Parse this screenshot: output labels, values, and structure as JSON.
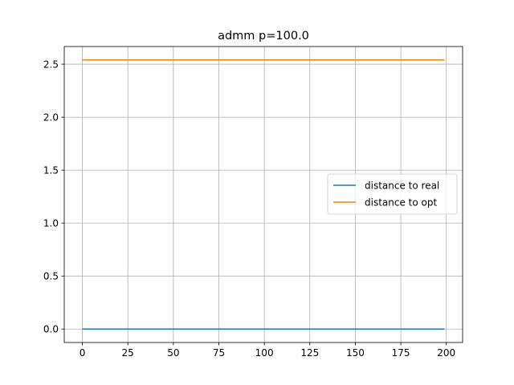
{
  "chart_data": {
    "type": "line",
    "title": "admm p=100.0",
    "xlabel": "",
    "ylabel": "",
    "xlim": [
      -9.95,
      208.95
    ],
    "ylim": [
      -0.127,
      2.667
    ],
    "xticks": [
      0,
      25,
      50,
      75,
      100,
      125,
      150,
      175,
      200
    ],
    "yticks": [
      0.0,
      0.5,
      1.0,
      1.5,
      2.0,
      2.5
    ],
    "grid": true,
    "legend_position": "center-right",
    "series": [
      {
        "name": "distance to real",
        "color": "#1f77b4",
        "x": [
          0,
          199
        ],
        "y": [
          0.0,
          0.0
        ]
      },
      {
        "name": "distance to opt",
        "color": "#ff7f0e",
        "x": [
          0,
          199
        ],
        "y": [
          2.54,
          2.54
        ]
      }
    ]
  }
}
